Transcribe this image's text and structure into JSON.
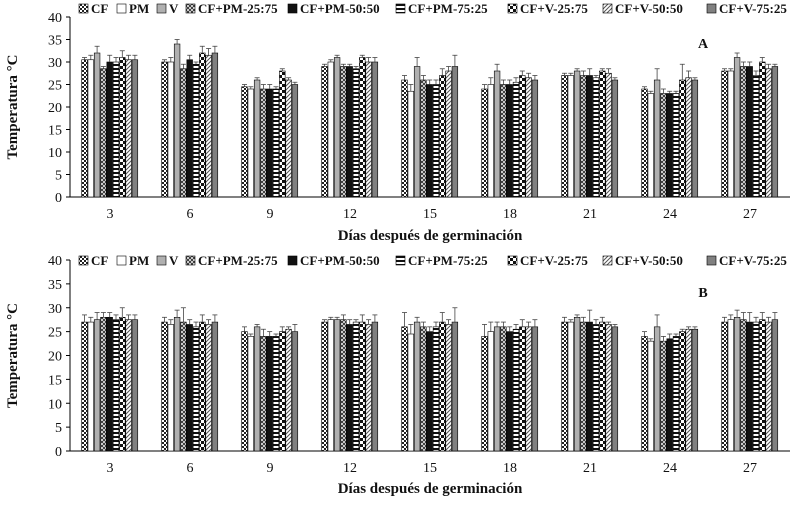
{
  "figure": {
    "series_names": [
      "CF",
      "PM",
      "V",
      "CF+PM-25:75",
      "CF+PM-50:50",
      "CF+PM-75:25",
      "CF+V-25:75",
      "CF+V-50:50",
      "CF+V-75:25"
    ],
    "series_styles": [
      {
        "fill": "checker",
        "color": "#222222"
      },
      {
        "fill": "solid",
        "color": "#ffffff"
      },
      {
        "fill": "solid",
        "color": "#b0b0b0"
      },
      {
        "fill": "crosshatch",
        "color": "#333333"
      },
      {
        "fill": "solid",
        "color": "#111111"
      },
      {
        "fill": "hstripe",
        "color": "#111111"
      },
      {
        "fill": "bigchecker",
        "color": "#111111"
      },
      {
        "fill": "diag",
        "color": "#555555"
      },
      {
        "fill": "solid",
        "color": "#808080"
      }
    ]
  },
  "chart_data": [
    {
      "type": "bar",
      "panel_label": "A",
      "categories": [
        "3",
        "6",
        "9",
        "12",
        "15",
        "18",
        "21",
        "24",
        "27"
      ],
      "xlabel": "Días después de germinación",
      "ylabel": "Temperatura °C",
      "ylim": [
        0,
        40
      ],
      "yticks": [
        0,
        5,
        10,
        15,
        20,
        25,
        30,
        35,
        40
      ],
      "grid": false,
      "legend_position": "top",
      "series": [
        {
          "name": "CF",
          "values": [
            30.5,
            30.0,
            24.5,
            29.0,
            26.0,
            24.0,
            27.0,
            24.0,
            28.0
          ],
          "errors": [
            0.5,
            0.5,
            0.5,
            0.5,
            1.0,
            1.0,
            0.5,
            0.5,
            0.5
          ]
        },
        {
          "name": "PM",
          "values": [
            30.5,
            30.0,
            24.0,
            30.0,
            23.5,
            25.0,
            27.0,
            23.0,
            28.0
          ],
          "errors": [
            1.0,
            1.0,
            0.5,
            0.5,
            1.5,
            1.5,
            0.5,
            0.5,
            0.5
          ]
        },
        {
          "name": "V",
          "values": [
            32.0,
            34.0,
            26.0,
            31.0,
            29.0,
            28.0,
            28.0,
            26.0,
            31.0
          ],
          "errors": [
            1.5,
            1.0,
            0.5,
            0.5,
            2.0,
            1.5,
            0.5,
            2.5,
            1.0
          ]
        },
        {
          "name": "CF+PM-25:75",
          "values": [
            28.5,
            28.5,
            24.0,
            29.0,
            26.0,
            25.0,
            27.0,
            23.0,
            29.0
          ],
          "errors": [
            0.5,
            1.0,
            1.0,
            0.5,
            1.0,
            1.0,
            1.0,
            1.0,
            1.0
          ]
        },
        {
          "name": "CF+PM-50:50",
          "values": [
            30.0,
            30.5,
            24.0,
            29.0,
            25.0,
            25.0,
            27.0,
            23.0,
            29.0
          ],
          "errors": [
            1.5,
            1.0,
            1.0,
            0.5,
            1.0,
            1.0,
            1.5,
            0.5,
            1.0
          ]
        },
        {
          "name": "CF+PM-75:25",
          "values": [
            30.0,
            29.5,
            24.0,
            28.5,
            25.0,
            25.5,
            26.5,
            23.0,
            27.0
          ],
          "errors": [
            1.0,
            0.5,
            0.5,
            0.5,
            1.0,
            1.0,
            0.5,
            0.5,
            1.0
          ]
        },
        {
          "name": "CF+V-25:75",
          "values": [
            31.0,
            32.0,
            28.0,
            31.0,
            27.0,
            27.0,
            28.0,
            26.0,
            30.0
          ],
          "errors": [
            1.5,
            1.5,
            0.5,
            0.5,
            1.5,
            1.0,
            0.5,
            3.5,
            1.0
          ]
        },
        {
          "name": "CF+V-50:50",
          "values": [
            30.5,
            31.5,
            26.0,
            30.0,
            28.0,
            26.5,
            27.5,
            26.5,
            28.5
          ],
          "errors": [
            1.0,
            1.5,
            0.5,
            1.0,
            1.0,
            1.0,
            1.0,
            1.5,
            1.0
          ]
        },
        {
          "name": "CF+V-75:25",
          "values": [
            30.5,
            32.0,
            25.0,
            30.0,
            29.0,
            26.0,
            26.0,
            26.0,
            29.0
          ],
          "errors": [
            1.0,
            1.5,
            0.5,
            1.0,
            2.5,
            1.0,
            0.5,
            0.5,
            0.5
          ]
        }
      ]
    },
    {
      "type": "bar",
      "panel_label": "B",
      "categories": [
        "3",
        "6",
        "9",
        "12",
        "15",
        "18",
        "21",
        "24",
        "27"
      ],
      "xlabel": "Días después de germinación",
      "ylabel": "Temperatura °C",
      "ylim": [
        0,
        40
      ],
      "yticks": [
        0,
        5,
        10,
        15,
        20,
        25,
        30,
        35,
        40
      ],
      "grid": false,
      "legend_position": "top",
      "series": [
        {
          "name": "CF",
          "values": [
            27.0,
            27.0,
            25.0,
            27.0,
            26.0,
            24.0,
            27.0,
            24.0,
            27.0
          ],
          "errors": [
            1.5,
            1.0,
            1.0,
            0.5,
            3.0,
            2.5,
            1.0,
            1.0,
            1.0
          ]
        },
        {
          "name": "PM",
          "values": [
            27.0,
            26.5,
            24.0,
            27.5,
            24.5,
            25.0,
            27.0,
            23.0,
            27.5
          ],
          "errors": [
            1.0,
            1.0,
            0.5,
            0.5,
            2.0,
            2.0,
            0.5,
            0.5,
            1.0
          ]
        },
        {
          "name": "V",
          "values": [
            27.5,
            28.0,
            26.0,
            27.5,
            27.0,
            26.0,
            28.0,
            26.0,
            28.0
          ],
          "errors": [
            1.5,
            1.5,
            0.5,
            0.5,
            1.0,
            1.0,
            0.5,
            2.5,
            1.5
          ]
        },
        {
          "name": "CF+PM-25:75",
          "values": [
            28.0,
            27.0,
            24.0,
            27.5,
            26.0,
            26.0,
            27.0,
            23.0,
            27.5
          ],
          "errors": [
            1.0,
            3.0,
            1.5,
            1.0,
            1.0,
            1.0,
            1.0,
            1.0,
            1.5
          ]
        },
        {
          "name": "CF+PM-50:50",
          "values": [
            28.0,
            26.5,
            24.0,
            26.5,
            25.0,
            25.0,
            27.0,
            23.5,
            27.0
          ],
          "errors": [
            1.0,
            1.0,
            1.0,
            1.0,
            1.0,
            1.0,
            2.5,
            1.0,
            2.0
          ]
        },
        {
          "name": "CF+PM-75:25",
          "values": [
            27.5,
            26.0,
            24.0,
            27.0,
            26.0,
            25.5,
            26.5,
            24.0,
            27.0
          ],
          "errors": [
            1.0,
            1.0,
            0.5,
            0.5,
            1.0,
            1.0,
            1.0,
            0.5,
            1.0
          ]
        },
        {
          "name": "CF+V-25:75",
          "values": [
            28.0,
            27.0,
            25.0,
            27.0,
            27.0,
            26.0,
            27.0,
            25.0,
            27.5
          ],
          "errors": [
            2.0,
            1.5,
            1.0,
            1.5,
            2.0,
            1.5,
            1.0,
            0.5,
            1.5
          ]
        },
        {
          "name": "CF+V-50:50",
          "values": [
            27.5,
            26.5,
            25.5,
            26.5,
            26.5,
            26.0,
            26.5,
            25.5,
            27.0
          ],
          "errors": [
            1.0,
            1.0,
            0.5,
            1.0,
            1.0,
            1.0,
            0.5,
            0.5,
            1.0
          ]
        },
        {
          "name": "CF+V-75:25",
          "values": [
            27.5,
            27.0,
            25.0,
            27.0,
            27.0,
            26.0,
            26.0,
            25.5,
            27.5
          ],
          "errors": [
            1.0,
            1.5,
            1.5,
            1.5,
            3.0,
            1.5,
            0.5,
            0.5,
            1.5
          ]
        }
      ]
    }
  ]
}
